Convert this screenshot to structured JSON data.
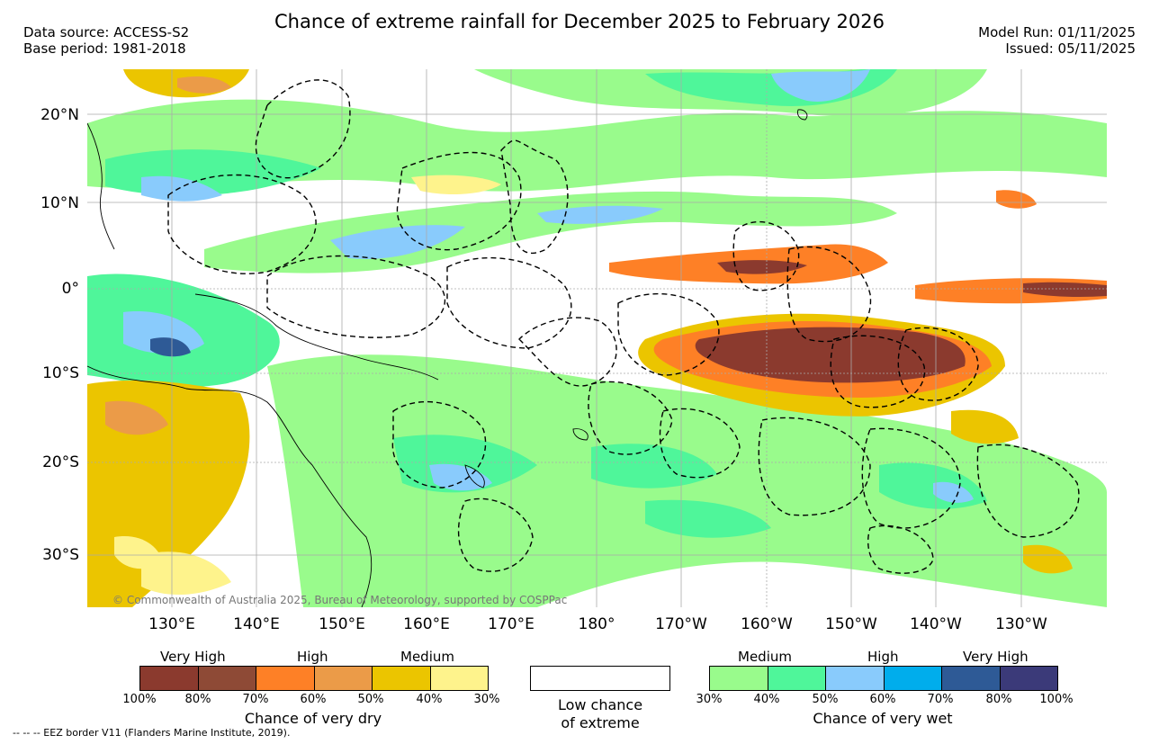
{
  "header": {
    "title": "Chance of extreme rainfall for December 2025 to February 2026",
    "data_source": "Data source: ACCESS-S2",
    "base_period": "Base period: 1981-2018",
    "model_run": "Model Run: 01/11/2025",
    "issued": "Issued: 05/11/2025"
  },
  "map": {
    "lat_labels": [
      "20°N",
      "10°N",
      "0°",
      "10°S",
      "20°S",
      "30°S"
    ],
    "lon_labels": [
      "130°E",
      "140°E",
      "150°E",
      "160°E",
      "170°E",
      "180°",
      "170°W",
      "160°W",
      "150°W",
      "140°W",
      "130°W"
    ],
    "copyright": "© Commonwealth of Australia 2025, Bureau of Meteorology, supported by COSPPac"
  },
  "legend": {
    "dry": {
      "categories": [
        "Very High",
        "High",
        "Medium"
      ],
      "colors": [
        "#8B3A2E",
        "#8E4A36",
        "#FE8026",
        "#EB9B48",
        "#EBC500",
        "#FEF38C"
      ],
      "ticks": [
        "100%",
        "80%",
        "70%",
        "60%",
        "50%",
        "40%",
        "30%"
      ],
      "caption": "Chance of very dry"
    },
    "low": {
      "caption_line1": "Low chance",
      "caption_line2": "of extreme"
    },
    "wet": {
      "categories": [
        "Medium",
        "High",
        "Very High"
      ],
      "colors": [
        "#99FB8C",
        "#4FF69A",
        "#89CBFC",
        "#00ADEC",
        "#2E5A96",
        "#3B3A79"
      ],
      "ticks": [
        "30%",
        "40%",
        "50%",
        "60%",
        "70%",
        "80%",
        "100%"
      ],
      "caption": "Chance of very wet"
    }
  },
  "footnote": "-- -- -- EEZ border V11 (Flanders Marine Institute, 2019)."
}
